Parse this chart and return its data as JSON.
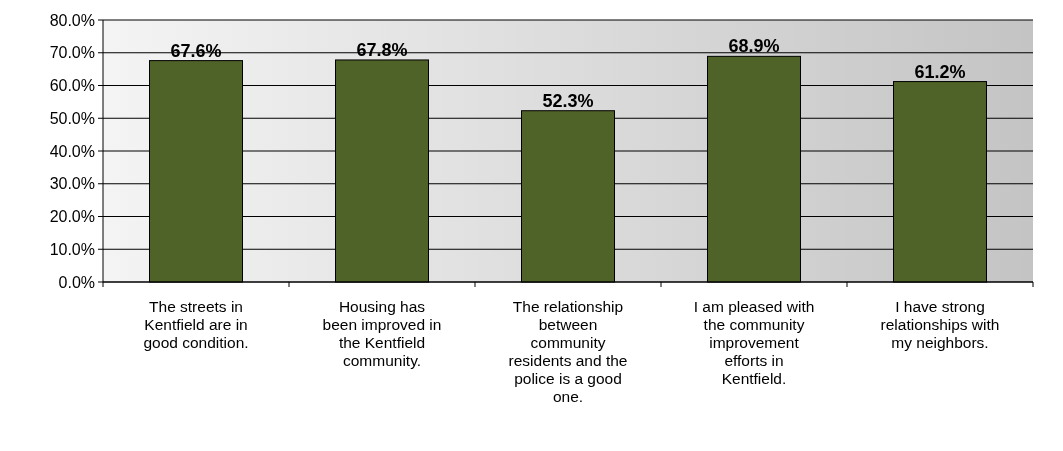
{
  "chart_data": {
    "type": "bar",
    "categories": [
      "The streets in Kentfield are in good condition.",
      "Housing has been improved in the Kentfield community.",
      "The relationship between community residents and the police is a good one.",
      "I am pleased with the community improvement efforts in Kentfield.",
      "I have strong relationships with my neighbors."
    ],
    "values": [
      67.6,
      67.8,
      52.3,
      68.9,
      61.2
    ],
    "color": "#4f6228",
    "ylim": [
      0,
      80
    ],
    "yticks": [
      {
        "value": 0,
        "label": "0.0%"
      },
      {
        "value": 10,
        "label": "10.0%"
      },
      {
        "value": 20,
        "label": "20.0%"
      },
      {
        "value": 30,
        "label": "30.0%"
      },
      {
        "value": 40,
        "label": "40.0%"
      },
      {
        "value": 50,
        "label": "50.0%"
      },
      {
        "value": 60,
        "label": "60.0%"
      },
      {
        "value": 70,
        "label": "70.0%"
      },
      {
        "value": 80,
        "label": "80.0%"
      }
    ],
    "value_labels": [
      "67.6%",
      "67.8%",
      "52.3%",
      "68.9%",
      "61.2%"
    ],
    "grid": "y"
  }
}
